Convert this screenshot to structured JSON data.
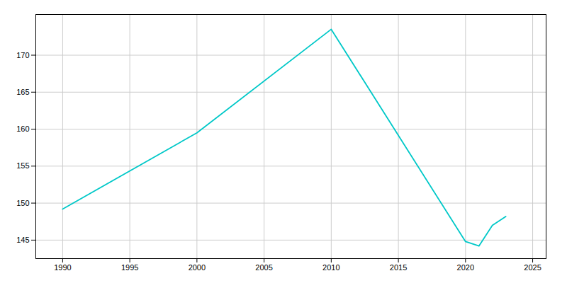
{
  "chart_data": {
    "type": "line",
    "x": [
      1990,
      2000,
      2010,
      2020,
      2021,
      2022,
      2023
    ],
    "values": [
      149.2,
      159.5,
      173.5,
      144.8,
      144.2,
      147.0,
      148.2
    ],
    "color": "#00c8c8",
    "xlim": [
      1988,
      2026
    ],
    "ylim": [
      142.5,
      175.5
    ],
    "xticks": [
      1990,
      1995,
      2000,
      2005,
      2010,
      2015,
      2020,
      2025
    ],
    "yticks": [
      145,
      150,
      155,
      160,
      165,
      170
    ],
    "grid": true
  }
}
